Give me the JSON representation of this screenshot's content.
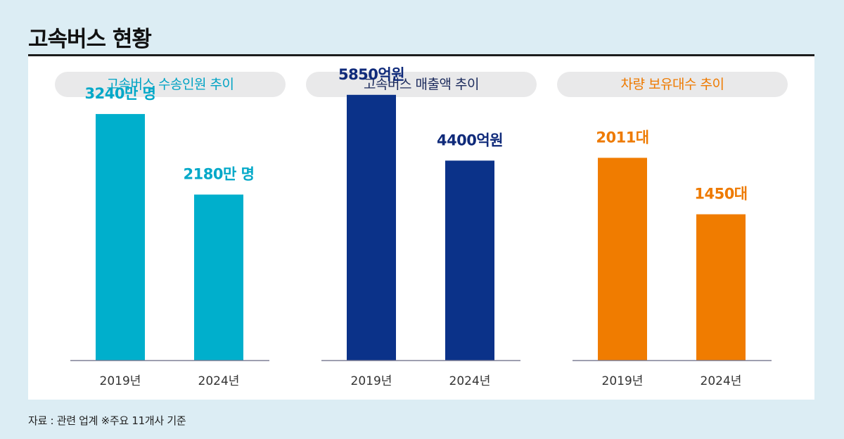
{
  "header": {
    "title": "고속버스 현황"
  },
  "footer": {
    "source": "자료 : 관련 업계 ※주요 11개사 기준"
  },
  "chart_data": [
    {
      "type": "bar",
      "title": "고속버스 수송인원 추이",
      "categories": [
        "2019년",
        "2024년"
      ],
      "values": [
        3240,
        2180
      ],
      "value_labels": [
        "3240만 명",
        "2180만 명"
      ],
      "ylim": [
        0,
        4000
      ],
      "color": "#00afcc",
      "title_color": "#00a3c4",
      "label_color": "#00a8c8"
    },
    {
      "type": "bar",
      "title": "고속버스 매출액 추이",
      "categories": [
        "2019년",
        "2024년"
      ],
      "values": [
        5850,
        4400
      ],
      "value_labels": [
        "5850억원",
        "4400억원"
      ],
      "ylim": [
        0,
        6700
      ],
      "color": "#0b3289",
      "title_color": "#1b2a5c",
      "label_color": "#0f2a7a"
    },
    {
      "type": "bar",
      "title": "차량 보유대수 추이",
      "categories": [
        "2019년",
        "2024년"
      ],
      "values": [
        2011,
        1450
      ],
      "value_labels": [
        "2011대",
        "1450대"
      ],
      "ylim": [
        0,
        3020
      ],
      "color": "#f07c00",
      "title_color": "#ee7a00",
      "label_color": "#ee7a00"
    }
  ]
}
